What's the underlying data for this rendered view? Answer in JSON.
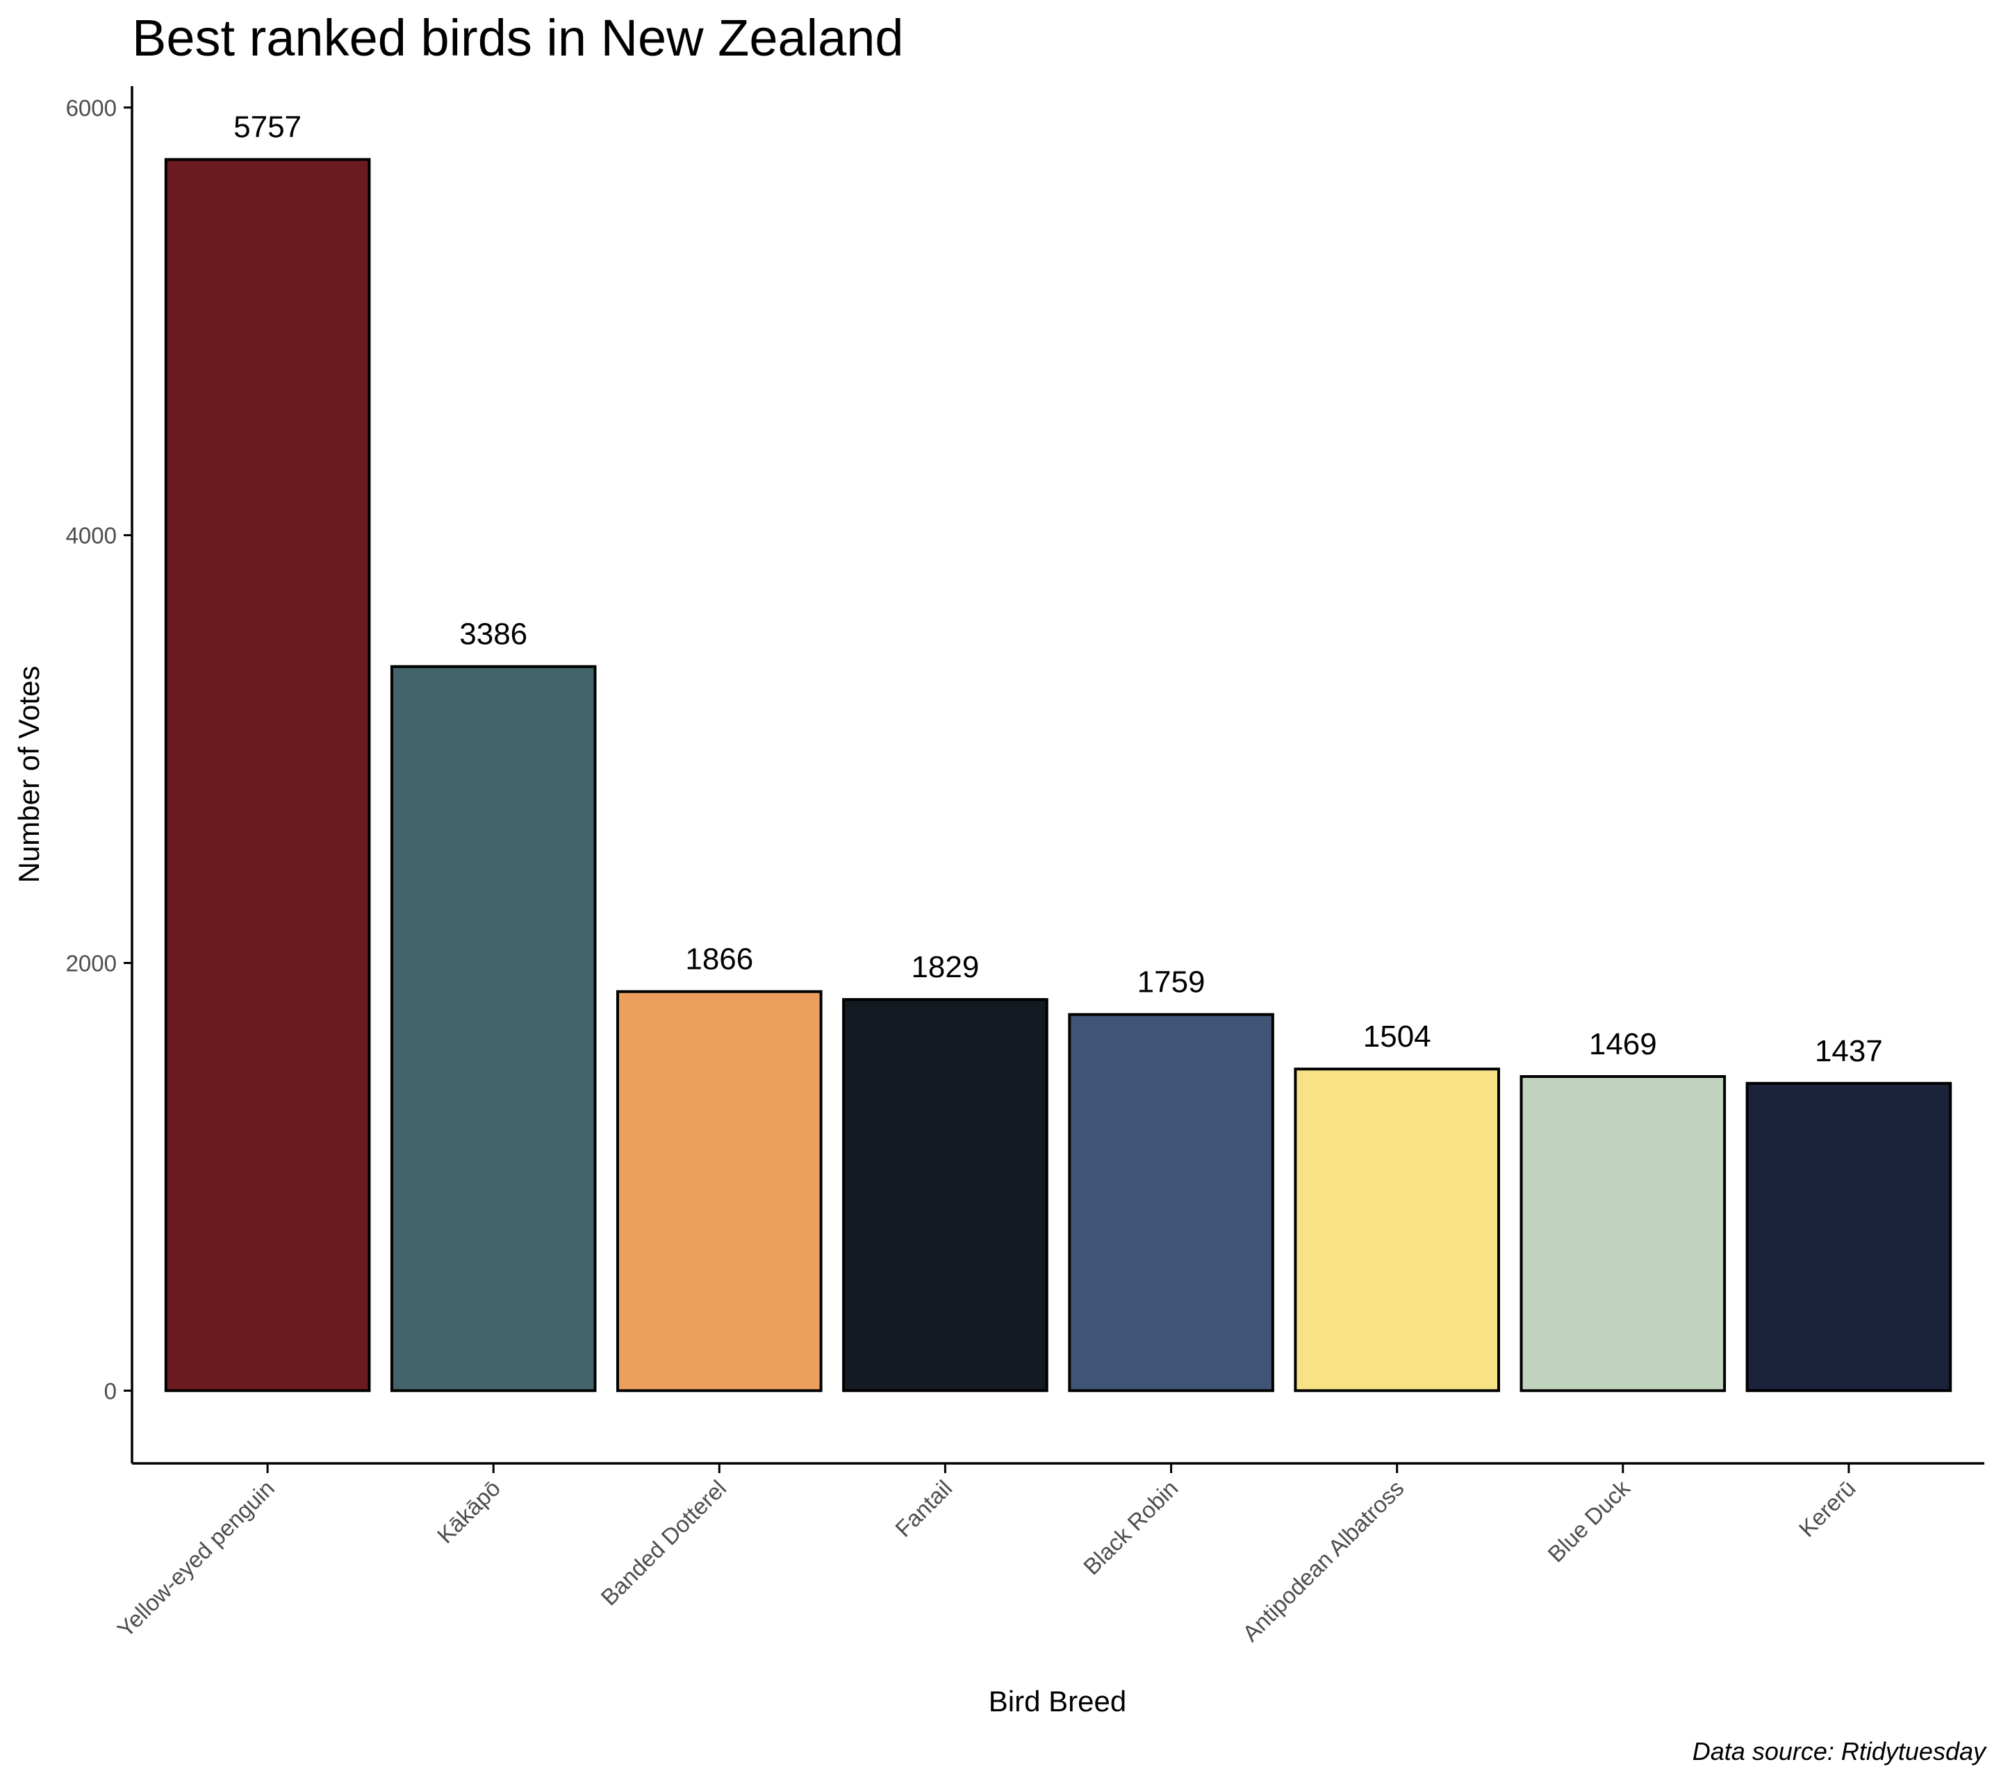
{
  "chart_data": {
    "type": "bar",
    "title": "Best ranked birds in New Zealand",
    "xlabel": "Bird Breed",
    "ylabel": "Number of Votes",
    "caption": "Data source: Rtidytuesday",
    "categories": [
      "Yellow-eyed penguin",
      "Kākāpō",
      "Banded Dotterel",
      "Fantail",
      "Black Robin",
      "Antipodean Albatross",
      "Blue Duck",
      "Kererū"
    ],
    "values": [
      5757,
      3386,
      1866,
      1829,
      1759,
      1504,
      1469,
      1437
    ],
    "data_labels": [
      "5757",
      "3386",
      "1866",
      "1829",
      "1759",
      "1504",
      "1469",
      "1437"
    ],
    "colors": [
      "#6B1B20",
      "#44646B",
      "#ED9F5E",
      "#131A22",
      "#405475",
      "#F8E286",
      "#C0D3BD",
      "#1A233A"
    ],
    "bar_outline_color": "#000000",
    "yticks": [
      0,
      2000,
      4000,
      6000
    ],
    "ytick_labels": [
      "0",
      "2000",
      "4000",
      "6000"
    ],
    "ylim": [
      -340,
      6100
    ],
    "grid": false,
    "legend": "none"
  }
}
